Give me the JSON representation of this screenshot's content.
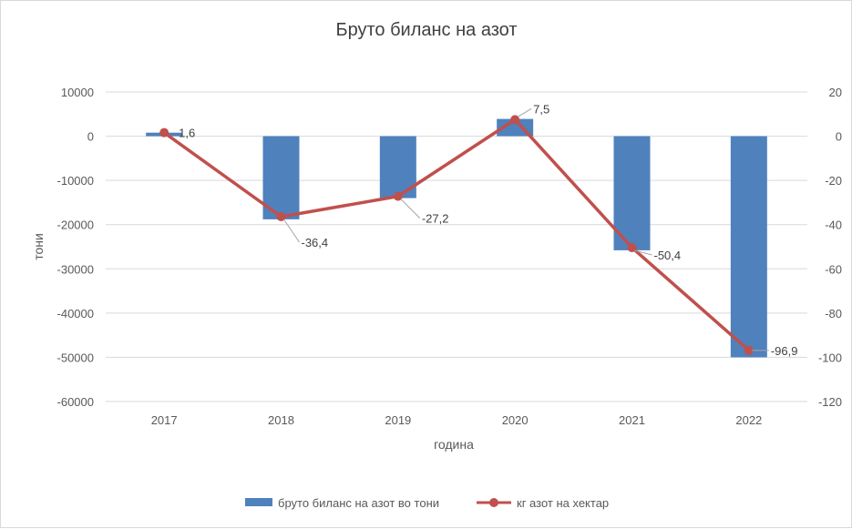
{
  "chart_data": {
    "type": "bar",
    "title": "Бруто биланс на азот",
    "xlabel": "година",
    "ylabel": "тони",
    "categories": [
      "2017",
      "2018",
      "2019",
      "2020",
      "2021",
      "2022"
    ],
    "ylim": [
      -60000,
      10000
    ],
    "y_ticks": [
      "10000",
      "0",
      "-10000",
      "-20000",
      "-30000",
      "-40000",
      "-50000",
      "-60000"
    ],
    "y2lim": [
      -120,
      20
    ],
    "y2_ticks": [
      "20",
      "0",
      "-20",
      "-40",
      "-60",
      "-80",
      "-100",
      "-120"
    ],
    "grid": true,
    "legend_position": "bottom",
    "series": [
      {
        "name": "бруто биланс на азот во тони",
        "type": "bar",
        "axis": "left",
        "color": "#4f81bd",
        "values": [
          800,
          -18800,
          -14000,
          3900,
          -25800,
          -50000
        ]
      },
      {
        "name": "кг азот на хектар",
        "type": "line",
        "axis": "right",
        "color": "#c0504d",
        "values": [
          1.6,
          -36.4,
          -27.2,
          7.5,
          -50.4,
          -96.9
        ],
        "data_labels": [
          "1,6",
          "-36,4",
          "-27,2",
          "7,5",
          "-50,4",
          "-96,9"
        ]
      }
    ]
  }
}
